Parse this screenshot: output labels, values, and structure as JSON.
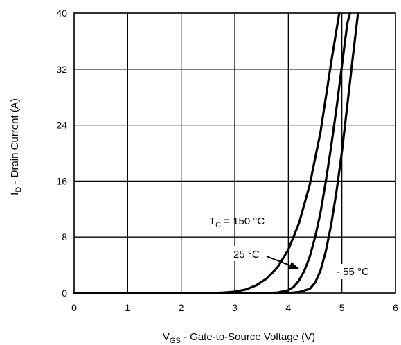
{
  "chart_data": {
    "type": "line",
    "xlabel": {
      "main": "V",
      "sub": "GS",
      "rest": " - Gate-to-Source Voltage (V)"
    },
    "ylabel": {
      "main": "I",
      "sub": "D",
      "rest": " - Drain Current (A)"
    },
    "xlim": [
      0,
      6
    ],
    "ylim": [
      0,
      40
    ],
    "xticks": [
      0,
      1,
      2,
      3,
      4,
      5,
      6
    ],
    "yticks": [
      0,
      8,
      16,
      24,
      32,
      40
    ],
    "grid": true,
    "legend": "none",
    "annotations": [
      {
        "id": "tc-150",
        "prefix_main": "T",
        "prefix_sub": "C",
        "text": " = 150 °C"
      },
      {
        "id": "tc-25",
        "text": "25 °C"
      },
      {
        "id": "tc-minus55",
        "text": "- 55 °C"
      }
    ],
    "series": [
      {
        "id": "t150",
        "x": [
          0.0,
          2.6,
          2.8,
          3.0,
          3.2,
          3.4,
          3.6,
          3.8,
          4.0,
          4.2,
          4.4,
          4.6,
          4.8,
          4.95
        ],
        "y": [
          0,
          0.02,
          0.08,
          0.2,
          0.5,
          1.1,
          2.1,
          3.7,
          6.2,
          10.0,
          15.5,
          23.0,
          33.0,
          40.0
        ]
      },
      {
        "id": "t25",
        "x": [
          0.0,
          3.6,
          3.8,
          4.0,
          4.1,
          4.2,
          4.3,
          4.4,
          4.5,
          4.6,
          4.7,
          4.8,
          4.9,
          5.0,
          5.1,
          5.15
        ],
        "y": [
          0,
          0.02,
          0.08,
          0.4,
          0.9,
          1.8,
          3.2,
          5.2,
          8.0,
          11.5,
          16.0,
          21.0,
          26.5,
          32.5,
          38.5,
          40.0
        ]
      },
      {
        "id": "tminus55",
        "x": [
          0.0,
          4.0,
          4.2,
          4.4,
          4.5,
          4.6,
          4.7,
          4.8,
          4.9,
          5.0,
          5.1,
          5.2,
          5.3
        ],
        "y": [
          0,
          0.02,
          0.15,
          0.6,
          1.5,
          3.2,
          6.0,
          9.8,
          14.6,
          20.2,
          26.8,
          33.5,
          40.0
        ]
      }
    ],
    "colors": {
      "lines": "#000000",
      "grid": "#000000",
      "background": "#ffffff"
    }
  }
}
